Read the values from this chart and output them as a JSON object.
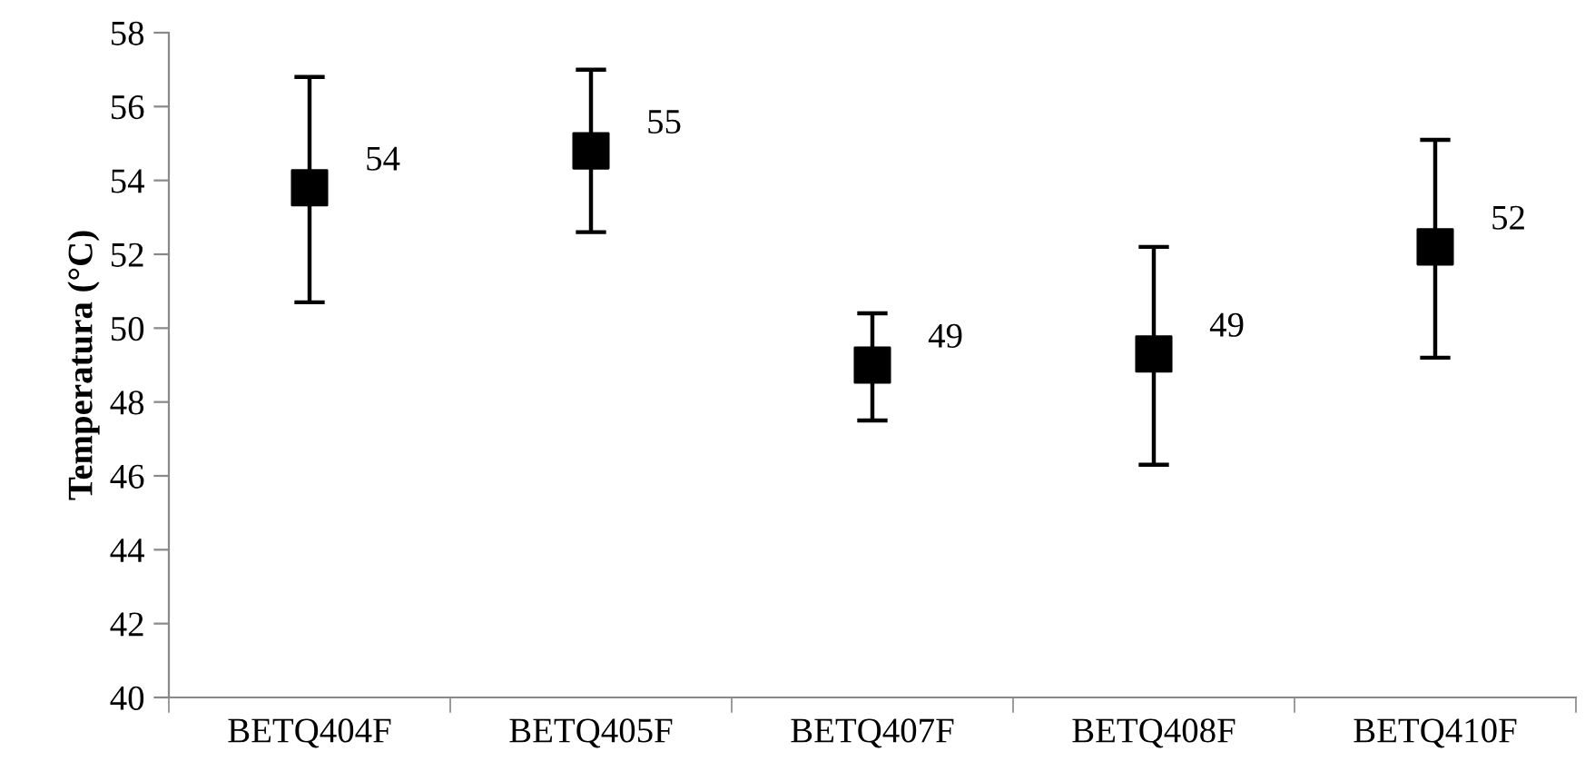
{
  "chart_data": {
    "type": "scatter",
    "ylabel": "Temperatura (°C)",
    "categories": [
      "BETQ404F",
      "BETQ405F",
      "BETQ407F",
      "BETQ408F",
      "BETQ410F"
    ],
    "series": [
      {
        "color": "#000000",
        "values": [
          53.8,
          54.8,
          49.0,
          49.3,
          52.2
        ],
        "errors": [
          [
            50.7,
            56.8
          ],
          [
            52.6,
            57.0
          ],
          [
            47.5,
            50.4
          ],
          [
            46.3,
            52.2
          ],
          [
            49.2,
            55.1
          ]
        ],
        "value_labels": [
          "54",
          "55",
          "49",
          "49",
          "52"
        ]
      }
    ],
    "ylim": [
      40,
      58
    ],
    "yticks": [
      40,
      42,
      44,
      46,
      48,
      50,
      52,
      54,
      56,
      58
    ],
    "marker": "square",
    "grid": false,
    "legend": false
  }
}
